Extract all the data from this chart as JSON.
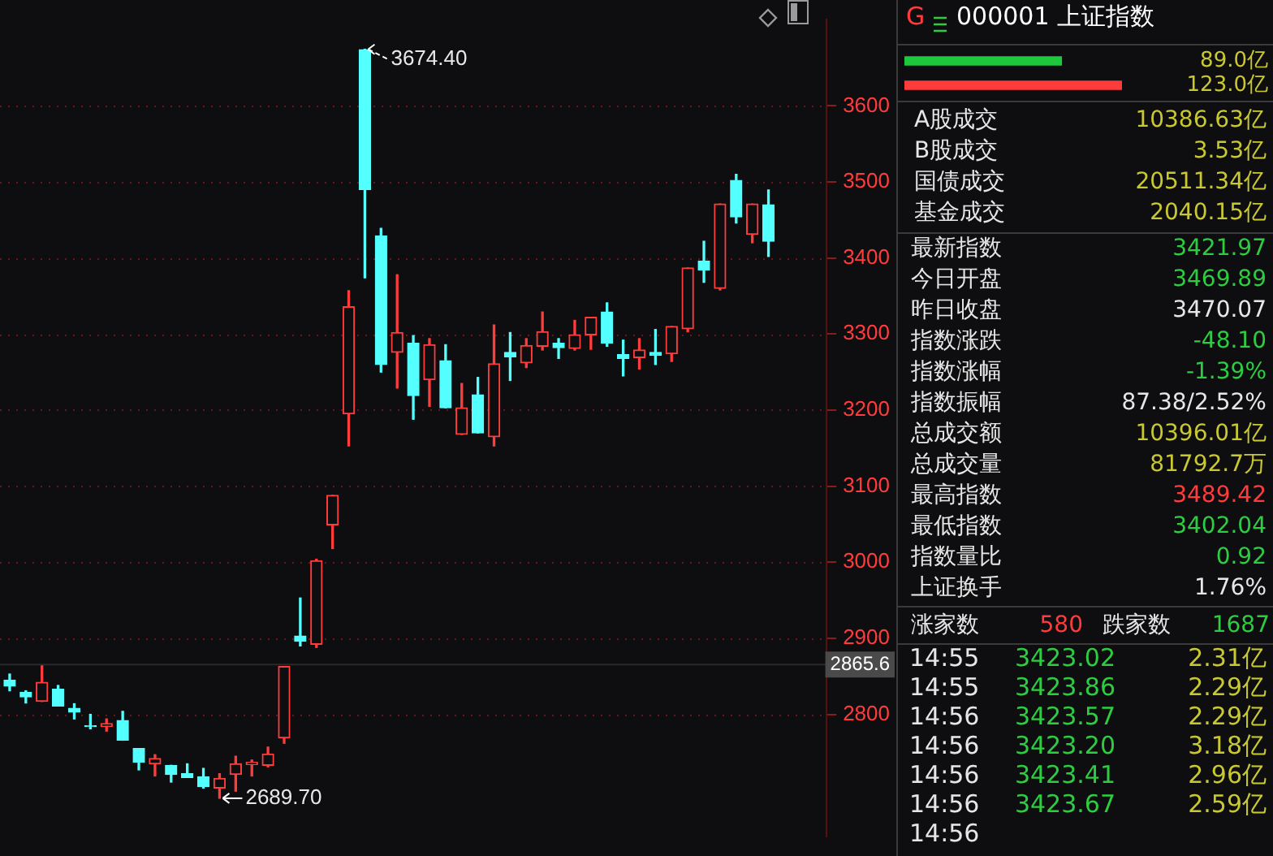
{
  "chart_data": [
    {
      "type": "candlestick",
      "categories": [
        null,
        null,
        null,
        null,
        null,
        null,
        null,
        null,
        null,
        null,
        null,
        null,
        null,
        null,
        null,
        null,
        null,
        null,
        null,
        null,
        null,
        null,
        null,
        null,
        null,
        null,
        null,
        null,
        null,
        null,
        null,
        null,
        null,
        null,
        null,
        null,
        null,
        null,
        null,
        null,
        null,
        null,
        null,
        null,
        null,
        null,
        null,
        null
      ],
      "ohlc": [
        [
          2845,
          2853,
          2831,
          2837
        ],
        [
          2829,
          2831,
          2815,
          2823
        ],
        [
          2817,
          2865,
          2817,
          2842
        ],
        [
          2833,
          2838,
          2811,
          2811
        ],
        [
          2808,
          2814,
          2794,
          2803
        ],
        [
          2785,
          2800,
          2781,
          2784
        ],
        [
          2784,
          2794,
          2778,
          2788
        ],
        [
          2792,
          2804,
          2766,
          2766
        ],
        [
          2755,
          2755,
          2727,
          2737
        ],
        [
          2735,
          2747,
          2719,
          2742
        ],
        [
          2733,
          2733,
          2711,
          2721
        ],
        [
          2722,
          2735,
          2717,
          2717
        ],
        [
          2718,
          2729,
          2703,
          2705
        ],
        [
          2703,
          2722,
          2689.7,
          2716
        ],
        [
          2721,
          2745,
          2699,
          2735
        ],
        [
          2734,
          2740,
          2719,
          2737
        ],
        [
          2733,
          2757,
          2731,
          2748
        ],
        [
          2769,
          2863,
          2762,
          2863
        ],
        [
          2903,
          2953,
          2890,
          2896
        ],
        [
          2892,
          3004,
          2888,
          3002
        ],
        [
          3049,
          3088,
          3018,
          3088
        ],
        [
          3195,
          3357,
          3153,
          3336
        ],
        [
          3674,
          3674.4,
          3374,
          3490
        ],
        [
          3429,
          3439,
          3250,
          3260
        ],
        [
          3276,
          3378,
          3229,
          3302
        ],
        [
          3288,
          3298,
          3188,
          3219
        ],
        [
          3240,
          3294,
          3205,
          3286
        ],
        [
          3265,
          3286,
          3203,
          3203
        ],
        [
          3168,
          3235,
          3168,
          3203
        ],
        [
          3220,
          3243,
          3170,
          3170
        ],
        [
          3165,
          3312,
          3153,
          3261
        ],
        [
          3276,
          3302,
          3239,
          3270
        ],
        [
          3262,
          3294,
          3256,
          3285
        ],
        [
          3284,
          3329,
          3279,
          3303
        ],
        [
          3288,
          3294,
          3268,
          3282
        ],
        [
          3281,
          3318,
          3279,
          3299
        ],
        [
          3299,
          3322,
          3280,
          3322
        ],
        [
          3329,
          3341,
          3284,
          3288
        ],
        [
          3273,
          3292,
          3245,
          3268
        ],
        [
          3269,
          3294,
          3254,
          3279
        ],
        [
          3276,
          3306,
          3260,
          3272
        ],
        [
          3274,
          3310,
          3264,
          3310
        ],
        [
          3307,
          3387,
          3303,
          3387
        ],
        [
          3396,
          3422,
          3368,
          3384
        ],
        [
          3360,
          3471,
          3358,
          3471
        ],
        [
          3502,
          3510,
          3446,
          3454
        ],
        [
          3431,
          3471,
          3420,
          3471
        ],
        [
          3469.89,
          3489.42,
          3402.04,
          3421.97
        ]
      ],
      "colors": [
        "#54ffff",
        "#54ffff",
        "#ff3c3c",
        "#54ffff",
        "#54ffff",
        "#54ffff",
        "#ff3c3c",
        "#54ffff",
        "#54ffff",
        "#ff3c3c",
        "#54ffff",
        "#54ffff",
        "#54ffff",
        "#ff3c3c",
        "#ff3c3c",
        "#ff3c3c",
        "#ff3c3c",
        "#ff3c3c",
        "#54ffff",
        "#ff3c3c",
        "#ff3c3c",
        "#ff3c3c",
        "#54ffff",
        "#54ffff",
        "#ff3c3c",
        "#54ffff",
        "#ff3c3c",
        "#54ffff",
        "#ff3c3c",
        "#54ffff",
        "#ff3c3c",
        "#54ffff",
        "#ff3c3c",
        "#ff3c3c",
        "#54ffff",
        "#ff3c3c",
        "#ff3c3c",
        "#54ffff",
        "#54ffff",
        "#ff3c3c",
        "#54ffff",
        "#ff3c3c",
        "#ff3c3c",
        "#54ffff",
        "#ff3c3c",
        "#54ffff",
        "#ff3c3c",
        "#54ffff"
      ],
      "ylim": [
        2639,
        3714
      ],
      "yticks": [
        2800,
        2900,
        3000,
        3100,
        3200,
        3300,
        3400,
        3500,
        3600
      ],
      "grid": "y",
      "ref_lines": [
        {
          "axis": "y",
          "value": 2865.6,
          "label": "2865.6",
          "color": "#2a2a2a"
        }
      ],
      "annotations": [
        "3674.40",
        "2689.70"
      ]
    },
    {
      "type": "bar",
      "orientation": "horizontal",
      "categories": [
        null,
        null
      ],
      "values": [
        89.0,
        123.0
      ],
      "colors": [
        "#1ec83c",
        "#ff3c3c"
      ],
      "value_labels": [
        "89.0亿",
        "123.0亿"
      ]
    },
    {
      "type": "other",
      "title": "000001 上证指数",
      "annotations": [
        "G",
        "A股成交",
        "10386.63亿",
        "B股成交",
        "3.53亿",
        "国债成交",
        "20511.34亿",
        "基金成交",
        "2040.15亿",
        "最新指数",
        "3421.97",
        "今日开盘",
        "3469.89",
        "昨日收盘",
        "3470.07",
        "指数涨跌",
        "-48.10",
        "指数涨幅",
        "-1.39%",
        "指数振幅",
        "87.38/2.52%",
        "总成交额",
        "10396.01亿",
        "总成交量",
        "81792.7万",
        "最高指数",
        "3489.42",
        "最低指数",
        "3402.04",
        "指数量比",
        "0.92",
        "上证换手",
        "1.76%",
        "涨家数",
        "580",
        "跌家数",
        "1687",
        "14:55",
        "3423.02",
        "2.31亿",
        "14:55",
        "3423.86",
        "2.29亿",
        "14:56",
        "3423.57",
        "2.29亿",
        "14:56",
        "3423.20",
        "3.18亿",
        "14:56",
        "3423.41",
        "2.96亿",
        "14:56",
        "3423.67",
        "2.59亿",
        "14:56"
      ]
    }
  ]
}
